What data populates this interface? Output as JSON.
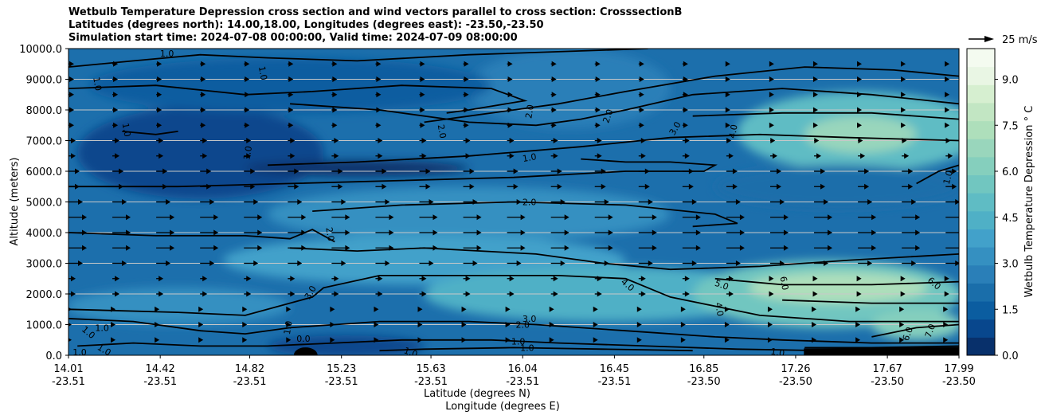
{
  "title_lines": [
    "Wetbulb Temperature Depression cross section and wind vectors parallel to cross section: CrosssectionB",
    "Latitudes (degrees north): 14.00,18.00, Longitudes (degrees east): -23.50,-23.50",
    "Simulation start time: 2024-07-08 00:00:00, Valid time: 2024-07-09 08:00:00"
  ],
  "chart_data": {
    "type": "heatmap",
    "ylabel": "Altitude (meters)",
    "xlabel_lat": "Latitude (degrees N)",
    "xlabel_lon": "Longitude (degrees E)",
    "ylim": [
      0,
      10000
    ],
    "y_ticks": [
      "0.0",
      "1000.0",
      "2000.0",
      "3000.0",
      "4000.0",
      "5000.0",
      "6000.0",
      "7000.0",
      "8000.0",
      "9000.0",
      "10000.0"
    ],
    "x_ticks_lat": [
      "14.01",
      "14.42",
      "14.82",
      "15.23",
      "15.63",
      "16.04",
      "16.45",
      "16.85",
      "17.26",
      "17.67",
      "17.99"
    ],
    "x_ticks_lon": [
      "-23.51",
      "-23.51",
      "-23.51",
      "-23.51",
      "-23.51",
      "-23.51",
      "-23.51",
      "-23.50",
      "-23.50",
      "-23.50",
      "-23.50"
    ],
    "grid": "horizontal",
    "colorbar": {
      "label": "Wetbulb Temperature Depression ° C",
      "range": [
        0,
        10
      ],
      "ticks": [
        "0.0",
        "1.5",
        "3.0",
        "4.5",
        "6.0",
        "7.5",
        "9.0"
      ],
      "colors": [
        "#08306b",
        "#08478d",
        "#0b5da0",
        "#1a6eaa",
        "#2a7fb8",
        "#3590c1",
        "#42a1ca",
        "#4fb0c6",
        "#5fbcc4",
        "#71c6c0",
        "#85cfbd",
        "#99d6bc",
        "#aedfbb",
        "#c2e6c3",
        "#d6efd0",
        "#e9f6e4",
        "#f4fbf0"
      ]
    },
    "contour_labels": [
      {
        "text": "1.0",
        "lat": 14.45,
        "z": 9850,
        "rot": 0
      },
      {
        "text": "1.0",
        "lat": 14.14,
        "z": 8850,
        "rot": 80
      },
      {
        "text": "1.0",
        "lat": 14.88,
        "z": 9200,
        "rot": 80
      },
      {
        "text": "1.0",
        "lat": 14.27,
        "z": 7350,
        "rot": 80
      },
      {
        "text": "1.0",
        "lat": 14.81,
        "z": 6600,
        "rot": -80
      },
      {
        "text": "2.0",
        "lat": 15.68,
        "z": 7300,
        "rot": 80
      },
      {
        "text": "2.0",
        "lat": 16.07,
        "z": 7950,
        "rot": -80
      },
      {
        "text": "2.0",
        "lat": 16.42,
        "z": 7800,
        "rot": -70
      },
      {
        "text": "3.0",
        "lat": 16.72,
        "z": 7400,
        "rot": -60
      },
      {
        "text": "4.0",
        "lat": 16.98,
        "z": 7300,
        "rot": -80
      },
      {
        "text": "1.0",
        "lat": 16.07,
        "z": 6450,
        "rot": -10
      },
      {
        "text": "1.0",
        "lat": 17.94,
        "z": 5800,
        "rot": -75
      },
      {
        "text": "2.0",
        "lat": 16.07,
        "z": 5000,
        "rot": 0
      },
      {
        "text": "2.0",
        "lat": 15.18,
        "z": 3950,
        "rot": 80
      },
      {
        "text": "3.0",
        "lat": 15.09,
        "z": 2050,
        "rot": -60
      },
      {
        "text": "4.0",
        "lat": 16.51,
        "z": 2300,
        "rot": 40
      },
      {
        "text": "5.0",
        "lat": 16.93,
        "z": 2300,
        "rot": 20
      },
      {
        "text": "6.0",
        "lat": 17.21,
        "z": 2350,
        "rot": 80
      },
      {
        "text": "6.0",
        "lat": 17.88,
        "z": 2350,
        "rot": 40
      },
      {
        "text": "4.0",
        "lat": 16.92,
        "z": 1500,
        "rot": 80
      },
      {
        "text": "3.0",
        "lat": 16.07,
        "z": 1200,
        "rot": 0
      },
      {
        "text": "2.0",
        "lat": 16.04,
        "z": 1000,
        "rot": 0
      },
      {
        "text": "1.0",
        "lat": 14.16,
        "z": 900,
        "rot": 0
      },
      {
        "text": "1.0",
        "lat": 14.1,
        "z": 750,
        "rot": 40
      },
      {
        "text": "1.0",
        "lat": 14.99,
        "z": 900,
        "rot": -80
      },
      {
        "text": "1.0",
        "lat": 16.02,
        "z": 450,
        "rot": 0
      },
      {
        "text": "1.0",
        "lat": 16.06,
        "z": 250,
        "rot": 0
      },
      {
        "text": "1.0",
        "lat": 15.54,
        "z": 100,
        "rot": 20
      },
      {
        "text": "1.0",
        "lat": 14.06,
        "z": 100,
        "rot": 0
      },
      {
        "text": "1.0",
        "lat": 14.17,
        "z": 180,
        "rot": 30
      },
      {
        "text": "0.0",
        "lat": 15.06,
        "z": 550,
        "rot": 0
      },
      {
        "text": "6.0",
        "lat": 17.76,
        "z": 700,
        "rot": -70
      },
      {
        "text": "7.0",
        "lat": 17.86,
        "z": 800,
        "rot": -70
      },
      {
        "text": "1.0",
        "lat": 17.18,
        "z": 100,
        "rot": 10
      }
    ],
    "wind_key_label": "25 m/s"
  }
}
